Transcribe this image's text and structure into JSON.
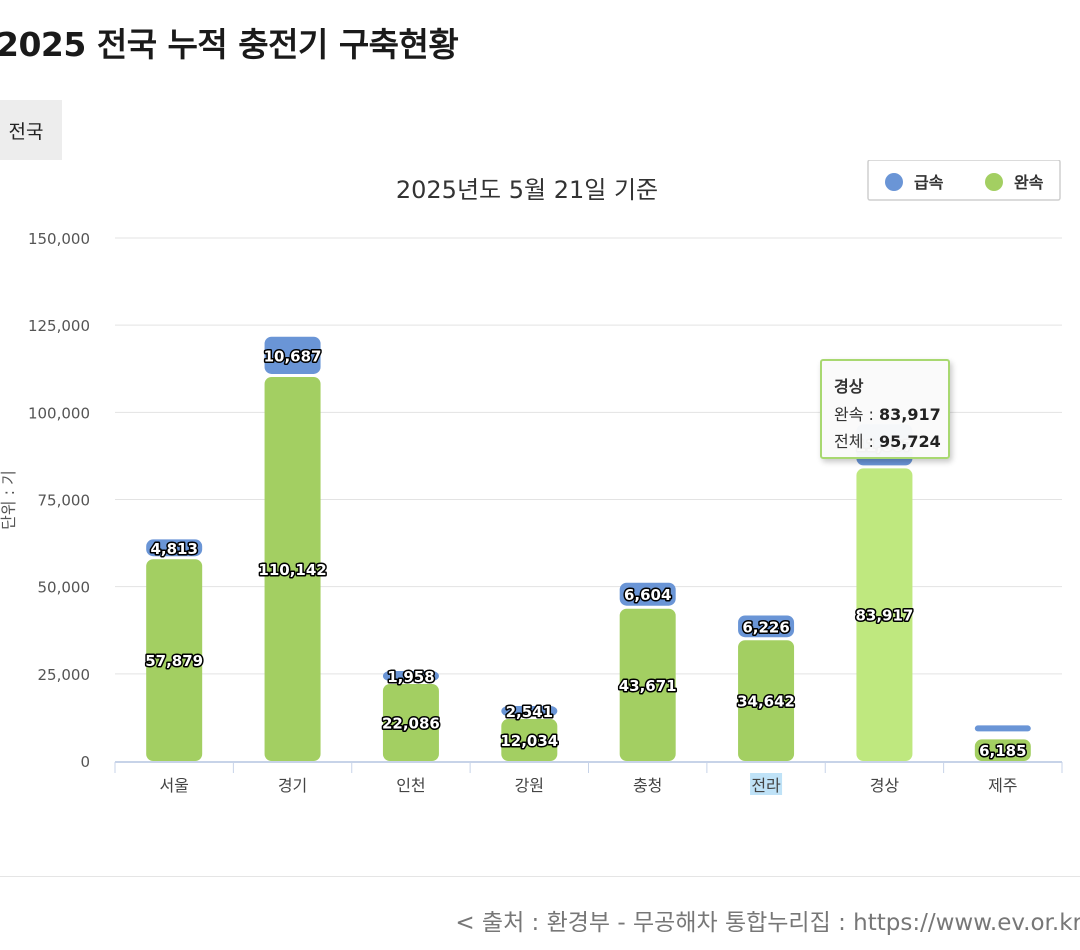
{
  "page_title": "2025 전국 누적 충전기 구축현황",
  "region_tab": "전국",
  "source_text": "< 출처 : 환경부 - 무공해차 통합누리집 : https://www.ev.or.kr",
  "tooltip": {
    "title": "경상",
    "slow_label": "완속 :",
    "slow_value": "83,917",
    "total_label": "전체 :",
    "total_value": "95,724"
  },
  "chart_data": {
    "type": "bar",
    "stacked": true,
    "title": "2025년도 5월 21일 기준",
    "ylabel": "단위 : 기",
    "ylim": [
      0,
      150000
    ],
    "yticks": [
      0,
      25000,
      50000,
      75000,
      100000,
      125000,
      150000
    ],
    "ytick_labels": [
      "0",
      "25,000",
      "50,000",
      "75,000",
      "100,000",
      "125,000",
      "150,000"
    ],
    "categories": [
      "서울",
      "경기",
      "인천",
      "강원",
      "충청",
      "전라",
      "경상",
      "제주"
    ],
    "series": [
      {
        "name": "급속",
        "color": "#6a95d6",
        "values": [
          4813,
          10687,
          1958,
          2541,
          6604,
          6226,
          11807,
          0
        ],
        "labels": [
          "4,813",
          "10,687",
          "1,958",
          "2,541",
          "6,604",
          "6,226",
          "11,807",
          ""
        ]
      },
      {
        "name": "완속",
        "color": "#a3cf62",
        "values": [
          57879,
          110142,
          22086,
          12034,
          43671,
          34642,
          83917,
          6185
        ],
        "labels": [
          "57,879",
          "110,142",
          "22,086",
          "12,034",
          "43,671",
          "34,642",
          "83,917",
          "6,185"
        ]
      }
    ],
    "legend_position": "top-right",
    "grid": true,
    "highlighted_category": "경상",
    "highlight_color": "#bfe87f",
    "selected_tick_label": "전라"
  }
}
